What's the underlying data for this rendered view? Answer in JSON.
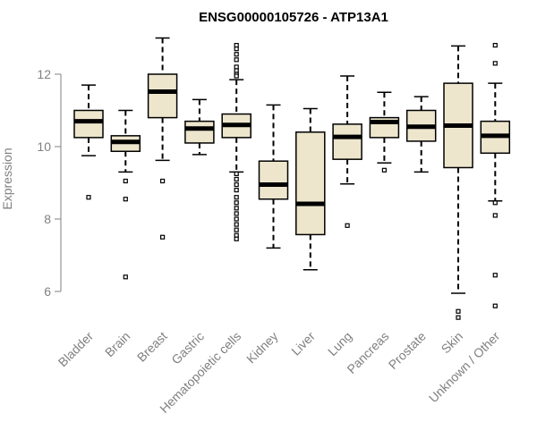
{
  "chart_data": {
    "type": "boxplot",
    "title": "ENSG00000105726 - ATP13A1",
    "xlabel": "",
    "ylabel": "Expression",
    "ylim": [
      5.2,
      13.0
    ],
    "yticks": [
      6,
      8,
      10,
      12
    ],
    "colors": {
      "box_fill": "#ede6cd",
      "median": "#000000",
      "axis": "#808080"
    },
    "categories": [
      "Bladder",
      "Brain",
      "Breast",
      "Gastric",
      "Hematopoietic cells",
      "Kidney",
      "Liver",
      "Lung",
      "Pancreas",
      "Prostate",
      "Skin",
      "Unknown / Other"
    ],
    "boxes": [
      {
        "q1": 10.25,
        "median": 10.7,
        "q3": 11.0,
        "whisker_low": 9.75,
        "whisker_high": 11.7,
        "outliers": [
          8.6
        ]
      },
      {
        "q1": 9.87,
        "median": 10.13,
        "q3": 10.3,
        "whisker_low": 9.3,
        "whisker_high": 11.0,
        "outliers": [
          9.05,
          8.55,
          6.4
        ]
      },
      {
        "q1": 10.8,
        "median": 11.52,
        "q3": 12.0,
        "whisker_low": 9.62,
        "whisker_high": 13.0,
        "outliers": [
          9.05,
          7.5
        ]
      },
      {
        "q1": 10.1,
        "median": 10.5,
        "q3": 10.7,
        "whisker_low": 9.78,
        "whisker_high": 11.3,
        "outliers": []
      },
      {
        "q1": 10.25,
        "median": 10.6,
        "q3": 10.9,
        "whisker_low": 9.3,
        "whisker_high": 11.85,
        "outliers": [
          12.8,
          12.7,
          12.55,
          12.4,
          12.2,
          12.1,
          12.0,
          11.95,
          9.25,
          9.1,
          8.95,
          8.8,
          8.6,
          8.45,
          8.3,
          8.15,
          8.0,
          7.85,
          7.7,
          7.55,
          7.45
        ]
      },
      {
        "q1": 8.55,
        "median": 8.95,
        "q3": 9.6,
        "whisker_low": 7.2,
        "whisker_high": 11.15,
        "outliers": []
      },
      {
        "q1": 7.57,
        "median": 8.42,
        "q3": 10.4,
        "whisker_low": 6.6,
        "whisker_high": 11.05,
        "outliers": []
      },
      {
        "q1": 9.65,
        "median": 10.27,
        "q3": 10.62,
        "whisker_low": 8.97,
        "whisker_high": 11.95,
        "outliers": [
          7.82
        ]
      },
      {
        "q1": 10.25,
        "median": 10.68,
        "q3": 10.8,
        "whisker_low": 9.55,
        "whisker_high": 11.5,
        "outliers": [
          9.35
        ]
      },
      {
        "q1": 10.15,
        "median": 10.55,
        "q3": 11.0,
        "whisker_low": 9.3,
        "whisker_high": 11.38,
        "outliers": []
      },
      {
        "q1": 9.42,
        "median": 10.58,
        "q3": 11.75,
        "whisker_low": 5.95,
        "whisker_high": 12.78,
        "outliers": [
          5.45,
          5.28
        ]
      },
      {
        "q1": 9.82,
        "median": 10.3,
        "q3": 10.7,
        "whisker_low": 8.5,
        "whisker_high": 11.75,
        "outliers": [
          12.8,
          12.3,
          8.45,
          8.1,
          6.45,
          5.6
        ]
      }
    ]
  }
}
